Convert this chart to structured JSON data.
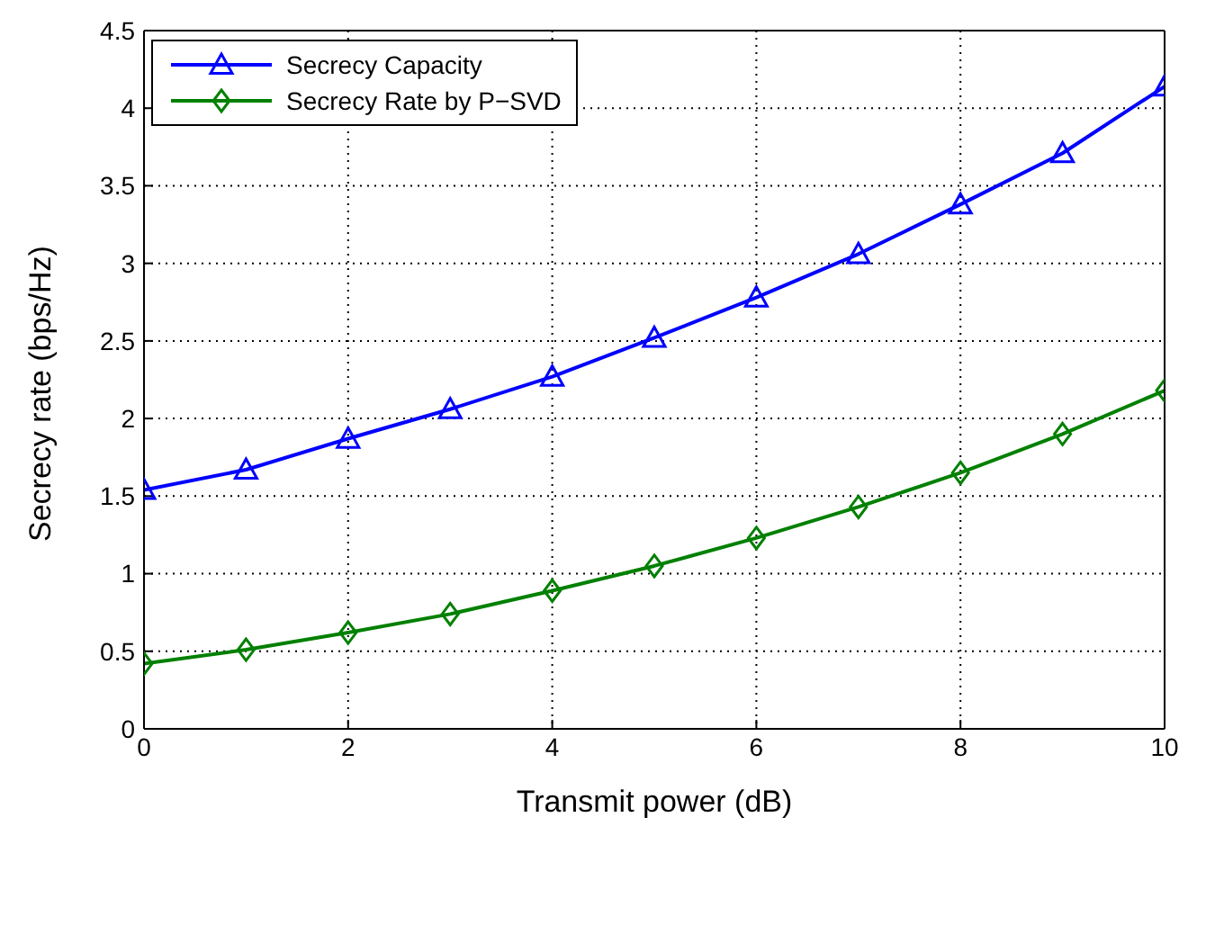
{
  "chart_data": {
    "type": "line",
    "xlabel": "Transmit power (dB)",
    "ylabel": "Secrecy rate (bps/Hz)",
    "x": [
      0,
      1,
      2,
      3,
      4,
      5,
      6,
      7,
      8,
      9,
      10
    ],
    "series": [
      {
        "name": "Secrecy Capacity",
        "color": "#0000ff",
        "marker": "triangle",
        "values": [
          1.54,
          1.67,
          1.87,
          2.06,
          2.27,
          2.52,
          2.78,
          3.06,
          3.38,
          3.71,
          4.14
        ]
      },
      {
        "name": "Secrecy Rate by P−SVD",
        "color": "#008000",
        "marker": "diamond",
        "values": [
          0.42,
          0.51,
          0.62,
          0.74,
          0.89,
          1.05,
          1.23,
          1.43,
          1.65,
          1.9,
          2.18
        ]
      }
    ],
    "xlim": [
      0,
      10
    ],
    "xticks": [
      0,
      2,
      4,
      6,
      8,
      10
    ],
    "ylim": [
      0,
      4.5
    ],
    "yticks": [
      0,
      0.5,
      1,
      1.5,
      2,
      2.5,
      3,
      3.5,
      4,
      4.5
    ],
    "grid": true,
    "legend": "top left",
    "line_style": "solid"
  }
}
